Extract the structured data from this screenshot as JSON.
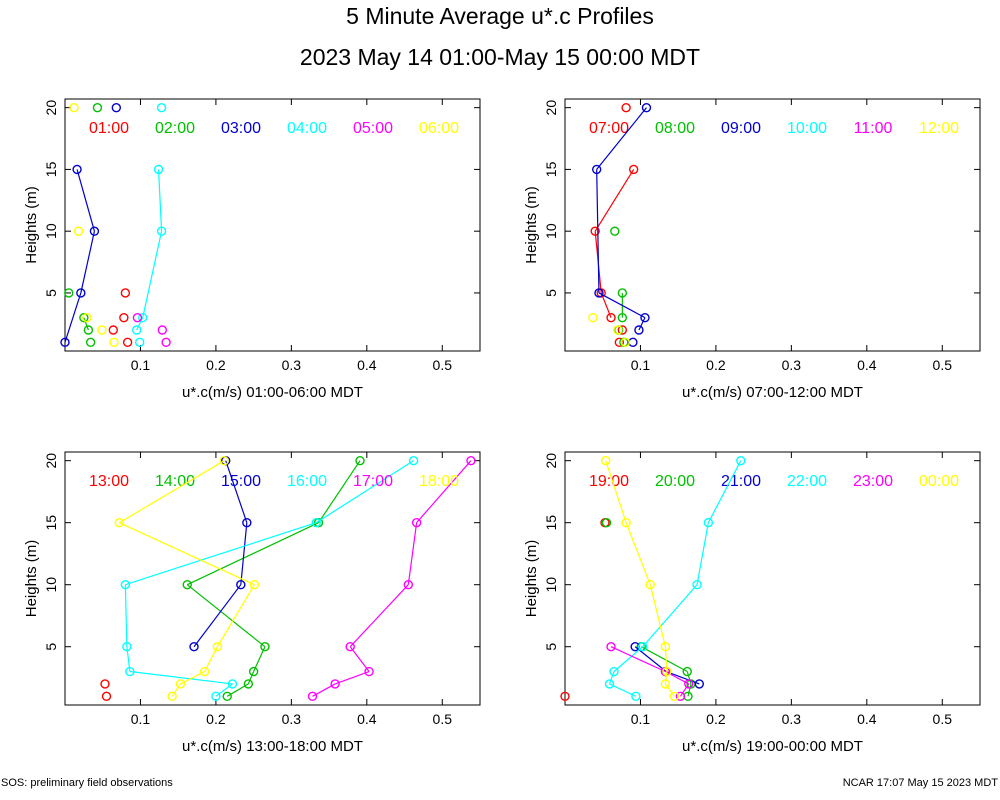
{
  "title": "5 Minute Average u*.c Profiles",
  "subtitle": "2023 May 14 01:00-May 15 00:00 MDT",
  "footer_left": "SOS: preliminary field observations",
  "footer_right": "NCAR 17:07 May 15 2023 MDT",
  "colors": [
    "#ff0000",
    "#00c000",
    "#0000d0",
    "#00ffff",
    "#ff00ff",
    "#ffff00"
  ],
  "chart_data": [
    {
      "type": "scatter",
      "xlabel": "u*.c(m/s) 01:00-06:00 MDT",
      "ylabel": "Heights (m)",
      "xlim": [
        0.0,
        0.55
      ],
      "ylim": [
        0.3,
        20.7
      ],
      "xticks": [
        "0.1",
        "0.2",
        "0.3",
        "0.4",
        "0.5"
      ],
      "yticks": [
        "5",
        "10",
        "15",
        "20"
      ],
      "series": [
        {
          "name": "01:00",
          "points": [
            [
              0.083,
              1
            ],
            [
              0.064,
              2
            ],
            [
              0.078,
              3
            ],
            [
              0.08,
              5
            ]
          ],
          "lines": []
        },
        {
          "name": "02:00",
          "points": [
            [
              0.034,
              1
            ],
            [
              0.031,
              2
            ],
            [
              0.025,
              3
            ],
            [
              0.005,
              5
            ],
            [
              0.043,
              20
            ]
          ],
          "lines": [
            [
              2,
              3
            ]
          ]
        },
        {
          "name": "03:00",
          "points": [
            [
              0.0,
              1
            ],
            [
              0.021,
              5
            ],
            [
              0.039,
              10
            ],
            [
              0.016,
              15
            ],
            [
              0.068,
              20
            ]
          ],
          "lines": [
            [
              1,
              2
            ],
            [
              2,
              3
            ],
            [
              3,
              4
            ]
          ]
        },
        {
          "name": "04:00",
          "points": [
            [
              0.099,
              1
            ],
            [
              0.095,
              2
            ],
            [
              0.103,
              3
            ],
            [
              0.128,
              10
            ],
            [
              0.124,
              15
            ],
            [
              0.128,
              20
            ]
          ],
          "lines": [
            [
              2,
              3
            ],
            [
              3,
              4
            ],
            [
              4,
              5
            ]
          ]
        },
        {
          "name": "05:00",
          "points": [
            [
              0.134,
              1
            ],
            [
              0.129,
              2
            ],
            [
              0.096,
              3
            ]
          ],
          "lines": []
        },
        {
          "name": "06:00",
          "points": [
            [
              0.065,
              1
            ],
            [
              0.049,
              2
            ],
            [
              0.029,
              3
            ],
            [
              0.018,
              10
            ],
            [
              0.012,
              20
            ]
          ],
          "lines": []
        }
      ]
    },
    {
      "type": "scatter",
      "xlabel": "u*.c(m/s) 07:00-12:00 MDT",
      "ylabel": "Heights (m)",
      "xlim": [
        0.0,
        0.55
      ],
      "ylim": [
        0.3,
        20.7
      ],
      "xticks": [
        "0.1",
        "0.2",
        "0.3",
        "0.4",
        "0.5"
      ],
      "yticks": [
        "5",
        "10",
        "15",
        "20"
      ],
      "series": [
        {
          "name": "07:00",
          "points": [
            [
              0.072,
              1
            ],
            [
              0.076,
              2
            ],
            [
              0.061,
              3
            ],
            [
              0.048,
              5
            ],
            [
              0.04,
              10
            ],
            [
              0.091,
              15
            ],
            [
              0.081,
              20
            ]
          ],
          "lines": [
            [
              3,
              4
            ],
            [
              4,
              5
            ],
            [
              5,
              6
            ]
          ]
        },
        {
          "name": "08:00",
          "points": [
            [
              0.078,
              1
            ],
            [
              0.071,
              2
            ],
            [
              0.076,
              3
            ],
            [
              0.076,
              5
            ],
            [
              0.066,
              10
            ]
          ],
          "lines": [
            [
              3,
              4
            ]
          ]
        },
        {
          "name": "09:00",
          "points": [
            [
              0.09,
              1
            ],
            [
              0.098,
              2
            ],
            [
              0.106,
              3
            ],
            [
              0.045,
              5
            ],
            [
              0.042,
              15
            ],
            [
              0.108,
              20
            ]
          ],
          "lines": [
            [
              2,
              3
            ],
            [
              3,
              4
            ],
            [
              4,
              5
            ],
            [
              5,
              6
            ]
          ]
        },
        {
          "name": "10:00",
          "points": [],
          "lines": []
        },
        {
          "name": "11:00",
          "points": [],
          "lines": []
        },
        {
          "name": "12:00",
          "points": [
            [
              0.08,
              1
            ],
            [
              0.07,
              2
            ],
            [
              0.037,
              3
            ]
          ],
          "lines": []
        }
      ]
    },
    {
      "type": "scatter",
      "xlabel": "u*.c(m/s) 13:00-18:00 MDT",
      "ylabel": "Heights (m)",
      "xlim": [
        0.0,
        0.55
      ],
      "ylim": [
        0.3,
        20.7
      ],
      "xticks": [
        "0.1",
        "0.2",
        "0.3",
        "0.4",
        "0.5"
      ],
      "yticks": [
        "5",
        "10",
        "15",
        "20"
      ],
      "series": [
        {
          "name": "13:00",
          "points": [
            [
              0.055,
              1
            ],
            [
              0.053,
              2
            ]
          ],
          "lines": []
        },
        {
          "name": "14:00",
          "points": [
            [
              0.215,
              1
            ],
            [
              0.243,
              2
            ],
            [
              0.25,
              3
            ],
            [
              0.265,
              5
            ],
            [
              0.162,
              10
            ],
            [
              0.336,
              15
            ],
            [
              0.391,
              20
            ]
          ],
          "lines": [
            [
              1,
              2
            ],
            [
              2,
              3
            ],
            [
              3,
              4
            ],
            [
              4,
              5
            ],
            [
              5,
              6
            ],
            [
              6,
              7
            ]
          ]
        },
        {
          "name": "15:00",
          "points": [
            [
              0.171,
              5
            ],
            [
              0.233,
              10
            ],
            [
              0.241,
              15
            ],
            [
              0.213,
              20
            ]
          ],
          "lines": [
            [
              1,
              2
            ],
            [
              2,
              3
            ],
            [
              3,
              4
            ]
          ]
        },
        {
          "name": "16:00",
          "points": [
            [
              0.2,
              1
            ],
            [
              0.222,
              2
            ],
            [
              0.086,
              3
            ],
            [
              0.082,
              5
            ],
            [
              0.08,
              10
            ],
            [
              0.333,
              15
            ],
            [
              0.462,
              20
            ]
          ],
          "lines": [
            [
              1,
              2
            ],
            [
              2,
              3
            ],
            [
              3,
              4
            ],
            [
              4,
              5
            ],
            [
              5,
              6
            ],
            [
              6,
              7
            ]
          ]
        },
        {
          "name": "17:00",
          "points": [
            [
              0.328,
              1
            ],
            [
              0.358,
              2
            ],
            [
              0.403,
              3
            ],
            [
              0.378,
              5
            ],
            [
              0.455,
              10
            ],
            [
              0.466,
              15
            ],
            [
              0.538,
              20
            ]
          ],
          "lines": [
            [
              1,
              2
            ],
            [
              2,
              3
            ],
            [
              3,
              4
            ],
            [
              4,
              5
            ],
            [
              5,
              6
            ],
            [
              6,
              7
            ]
          ]
        },
        {
          "name": "18:00",
          "points": [
            [
              0.142,
              1
            ],
            [
              0.153,
              2
            ],
            [
              0.185,
              3
            ],
            [
              0.202,
              5
            ],
            [
              0.251,
              10
            ],
            [
              0.072,
              15
            ],
            [
              0.211,
              20
            ]
          ],
          "lines": [
            [
              1,
              2
            ],
            [
              2,
              3
            ],
            [
              3,
              4
            ],
            [
              4,
              5
            ],
            [
              5,
              6
            ],
            [
              6,
              7
            ]
          ]
        }
      ]
    },
    {
      "type": "scatter",
      "xlabel": "u*.c(m/s) 19:00-00:00 MDT",
      "ylabel": "Heights (m)",
      "xlim": [
        0.0,
        0.55
      ],
      "ylim": [
        0.3,
        20.7
      ],
      "xticks": [
        "0.1",
        "0.2",
        "0.3",
        "0.4",
        "0.5"
      ],
      "yticks": [
        "5",
        "10",
        "15",
        "20"
      ],
      "series": [
        {
          "name": "19:00",
          "points": [
            [
              0.0,
              1
            ],
            [
              0.053,
              15
            ]
          ],
          "lines": []
        },
        {
          "name": "20:00",
          "points": [
            [
              0.163,
              1
            ],
            [
              0.167,
              2
            ],
            [
              0.162,
              3
            ],
            [
              0.101,
              5
            ],
            [
              0.055,
              15
            ]
          ],
          "lines": [
            [
              1,
              2
            ],
            [
              2,
              3
            ],
            [
              3,
              4
            ]
          ]
        },
        {
          "name": "21:00",
          "points": [
            [
              0.178,
              2
            ],
            [
              0.134,
              3
            ],
            [
              0.093,
              5
            ]
          ],
          "lines": [
            [
              1,
              2
            ],
            [
              2,
              3
            ]
          ]
        },
        {
          "name": "22:00",
          "points": [
            [
              0.094,
              1
            ],
            [
              0.059,
              2
            ],
            [
              0.065,
              3
            ],
            [
              0.103,
              5
            ],
            [
              0.175,
              10
            ],
            [
              0.19,
              15
            ],
            [
              0.233,
              20
            ]
          ],
          "lines": [
            [
              1,
              2
            ],
            [
              2,
              3
            ],
            [
              3,
              4
            ],
            [
              4,
              5
            ],
            [
              5,
              6
            ],
            [
              6,
              7
            ]
          ]
        },
        {
          "name": "23:00",
          "points": [
            [
              0.153,
              1
            ],
            [
              0.164,
              2
            ],
            [
              0.133,
              3
            ],
            [
              0.061,
              5
            ]
          ],
          "lines": [
            [
              1,
              2
            ],
            [
              2,
              3
            ],
            [
              3,
              4
            ]
          ]
        },
        {
          "name": "00:00",
          "points": [
            [
              0.145,
              1
            ],
            [
              0.133,
              2
            ],
            [
              0.135,
              3
            ],
            [
              0.133,
              5
            ],
            [
              0.113,
              10
            ],
            [
              0.081,
              15
            ],
            [
              0.054,
              20
            ]
          ],
          "lines": [
            [
              1,
              2
            ],
            [
              2,
              3
            ],
            [
              3,
              4
            ],
            [
              4,
              5
            ],
            [
              5,
              6
            ],
            [
              6,
              7
            ]
          ]
        }
      ]
    }
  ]
}
